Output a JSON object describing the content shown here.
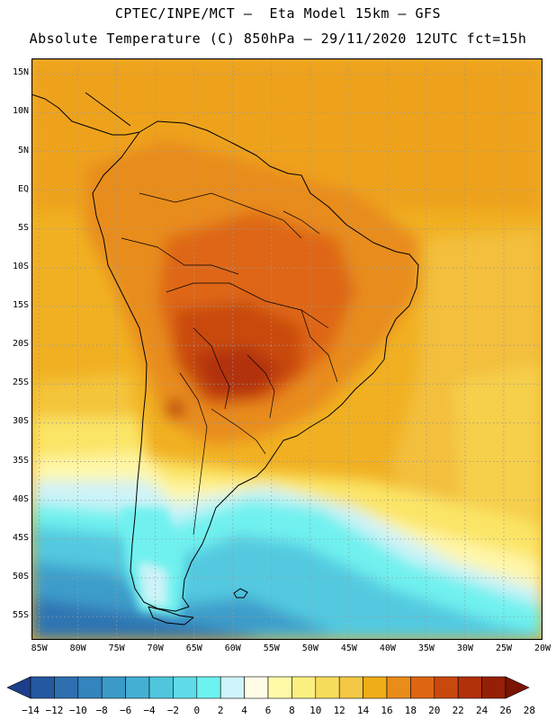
{
  "header": {
    "line1": "CPTEC/INPE/MCT –  Eta Model 15km – GFS",
    "line2": "Absolute Temperature (C) 850hPa – 29/11/2020 12UTC fct=15h"
  },
  "map": {
    "lat_labels": [
      "15N",
      "10N",
      "5N",
      "EQ",
      "5S",
      "10S",
      "15S",
      "20S",
      "25S",
      "30S",
      "35S",
      "40S",
      "45S",
      "50S",
      "55S"
    ],
    "lat_values": [
      15,
      10,
      5,
      0,
      -5,
      -10,
      -15,
      -20,
      -25,
      -30,
      -35,
      -40,
      -45,
      -50,
      -55
    ],
    "lon_labels": [
      "85W",
      "80W",
      "75W",
      "70W",
      "65W",
      "60W",
      "55W",
      "50W",
      "45W",
      "40W",
      "35W",
      "30W",
      "25W",
      "20W"
    ],
    "lon_values": [
      -85,
      -80,
      -75,
      -70,
      -65,
      -60,
      -55,
      -50,
      -45,
      -40,
      -35,
      -30,
      -25,
      -20
    ],
    "lat_range": [
      -58,
      17
    ],
    "lon_range": [
      -86,
      -20
    ],
    "grid": "dotted"
  },
  "colorbar": {
    "labels": [
      "−14",
      "−12",
      "−10",
      "−8",
      "−6",
      "−4",
      "−2",
      "0",
      "2",
      "4",
      "6",
      "8",
      "10",
      "12",
      "14",
      "16",
      "18",
      "20",
      "22",
      "24",
      "26",
      "28"
    ],
    "colors": [
      "#1c3f8c",
      "#2558a0",
      "#2e6fb0",
      "#3484bd",
      "#3a9ac8",
      "#43b0d3",
      "#4fc6de",
      "#5fdbe8",
      "#6cf2f0",
      "#cff4f9",
      "#fffde8",
      "#fffaa8",
      "#fbef80",
      "#f8dc5c",
      "#f4c844",
      "#f1ad18",
      "#e88c1a",
      "#de6612",
      "#c9480e",
      "#b2300a",
      "#962006",
      "#7a1403"
    ]
  }
}
